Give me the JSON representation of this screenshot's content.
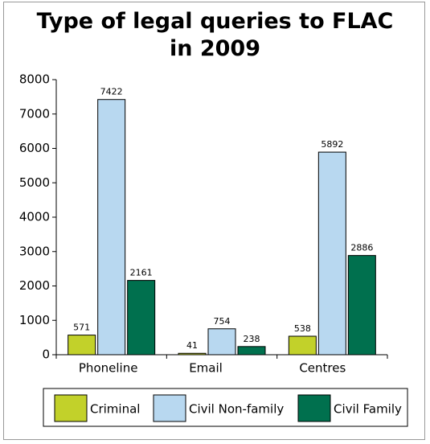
{
  "chart_data": {
    "type": "bar",
    "title": "Type of legal queries to FLAC in 2009",
    "categories": [
      "Phoneline",
      "Email",
      "Centres"
    ],
    "series": [
      {
        "name": "Criminal",
        "color": "#c2d12a",
        "values": [
          571,
          41,
          538
        ]
      },
      {
        "name": "Civil Non-family",
        "color": "#b8d8f0",
        "values": [
          7422,
          754,
          5892
        ]
      },
      {
        "name": "Civil Family",
        "color": "#00704e",
        "values": [
          2161,
          238,
          2886
        ]
      }
    ],
    "ylim": [
      0,
      8000
    ],
    "yticks": [
      0,
      1000,
      2000,
      3000,
      4000,
      5000,
      6000,
      7000,
      8000
    ],
    "legend": "bottom",
    "grid": false
  }
}
